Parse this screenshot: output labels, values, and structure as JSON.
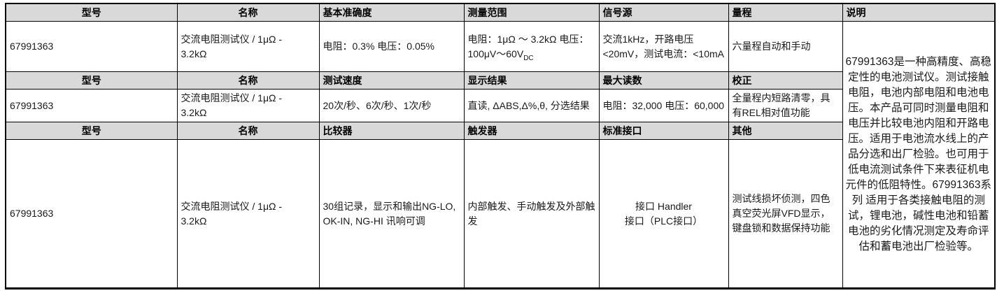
{
  "colors": {
    "header_bg": "#d9d9d9",
    "border": "#000000",
    "text": "#1a1a1a"
  },
  "sections": [
    {
      "headers": [
        "型号",
        "名称",
        "基本准确度",
        "测量范围",
        "信号源",
        "量程"
      ],
      "model": "67991363",
      "name": "交流电阻测试仪 / 1μΩ -\n3.2kΩ",
      "basic_accuracy": "电阻：0.3% 电压：0.05%",
      "measurement_range_text": "电阻：1μΩ ～ 3.2kΩ  电压：100μV～60V",
      "measurement_range_sub": "DC",
      "signal_source": "交流1kHz，开路电压<20mV，测试电流：<10mA",
      "range": "六量程自动和手动"
    },
    {
      "headers": [
        "型号",
        "名称",
        "测试速度",
        "显示结果",
        "最大读数",
        "校正"
      ],
      "model": "67991363",
      "name": "交流电阻测试仪 / 1μΩ -\n3.2kΩ",
      "test_speed": "20次/秒、6次/秒、1次/秒",
      "display_result": "直读, ΔABS,Δ%,θ, 分选结果",
      "max_reading": "电阻：32,000 电压：60,000",
      "calibration": "全量程内短路清零，具有REL相对值功能"
    },
    {
      "headers": [
        "型号",
        "名称",
        "比较器",
        "触发器",
        "标准接口",
        "其他"
      ],
      "model": "67991363",
      "name": "交流电阻测试仪 / 1μΩ -\n3.2kΩ",
      "comparator": "30组记录，显示和输出NG-LO, OK-IN, NG-HI 讯响可调",
      "trigger": "内部触发、手动触发及外部触发",
      "standard_interface": "接口 Handler\n接口（PLC接口）",
      "other": "测试线损坏侦测，四色真空荧光屏VFD显示，键盘锁和数据保持功能"
    }
  ],
  "description": {
    "header": "说明",
    "text": "67991363是一种高精度、高稳定性的电池测试仪。测试接触电阻，电池内部电阻和电池电压。本产品可同时测量电阻和电压并比较电池内阻和开路电压。适用于电池流水线上的产品分选和出厂检验。也可用于低电流测试条件下来表征机电元件的低阻特性。67991363系列 适用于各类接触电阻的测试，锂电池，碱性电池和铅蓄电池的劣化情况测定及寿命评估和蓄电池出厂检验等。"
  }
}
